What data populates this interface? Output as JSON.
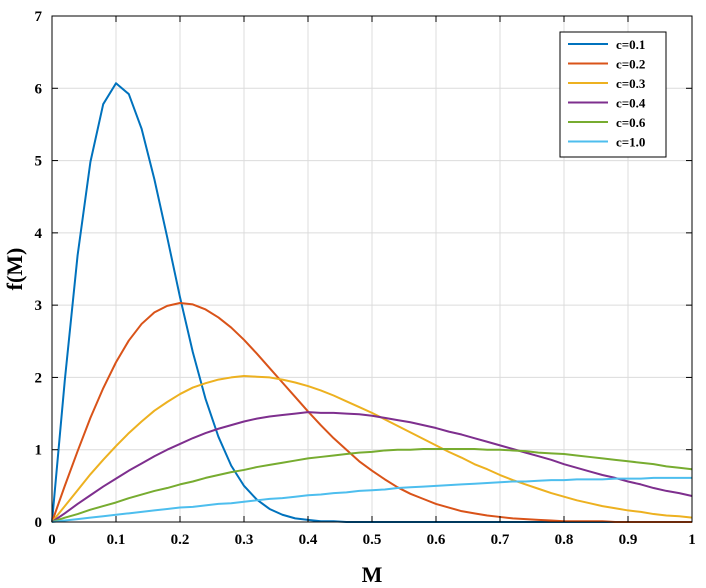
{
  "chart_data": {
    "type": "line",
    "xlabel": "M",
    "ylabel": "f(M)",
    "xlim": [
      0,
      1
    ],
    "ylim": [
      0,
      7
    ],
    "x_ticks": [
      "0",
      "0.1",
      "0.2",
      "0.3",
      "0.4",
      "0.5",
      "0.6",
      "0.7",
      "0.8",
      "0.9",
      "1"
    ],
    "y_ticks": [
      "0",
      "1",
      "2",
      "3",
      "4",
      "5",
      "6",
      "7"
    ],
    "grid": true,
    "legend_position": "top-right",
    "x": [
      0,
      0.02,
      0.04,
      0.06,
      0.08,
      0.1,
      0.12,
      0.14,
      0.16,
      0.18,
      0.2,
      0.22,
      0.24,
      0.26,
      0.28,
      0.3,
      0.32,
      0.34,
      0.36,
      0.38,
      0.4,
      0.42,
      0.44,
      0.46,
      0.48,
      0.5,
      0.52,
      0.54,
      0.56,
      0.58,
      0.6,
      0.62,
      0.64,
      0.66,
      0.68,
      0.7,
      0.72,
      0.74,
      0.76,
      0.78,
      0.8,
      0.82,
      0.84,
      0.86,
      0.88,
      0.9,
      0.92,
      0.94,
      0.96,
      0.98,
      1.0
    ],
    "series": [
      {
        "name": "c=0.1",
        "color": "#0072BD",
        "values": [
          0,
          1.96,
          3.69,
          4.98,
          5.78,
          6.07,
          5.92,
          5.44,
          4.74,
          3.94,
          3.11,
          2.35,
          1.7,
          1.18,
          0.78,
          0.5,
          0.31,
          0.18,
          0.1,
          0.05,
          0.03,
          0.01,
          0.01,
          0.0,
          0.0,
          0.0,
          0.0,
          0.0,
          0.0,
          0.0,
          0.0,
          0.0,
          0.0,
          0.0,
          0.0,
          0.0,
          0.0,
          0.0,
          0.0,
          0.0,
          0.0,
          0.0,
          0.0,
          0.0,
          0.0,
          0.0,
          0.0,
          0.0,
          0.0,
          0.0,
          0.0
        ]
      },
      {
        "name": "c=0.2",
        "color": "#D95319",
        "values": [
          0,
          0.5,
          0.98,
          1.44,
          1.85,
          2.21,
          2.51,
          2.74,
          2.9,
          2.99,
          3.03,
          3.01,
          2.94,
          2.83,
          2.69,
          2.52,
          2.33,
          2.13,
          1.93,
          1.73,
          1.53,
          1.34,
          1.16,
          1.0,
          0.84,
          0.71,
          0.59,
          0.48,
          0.39,
          0.32,
          0.25,
          0.2,
          0.15,
          0.12,
          0.09,
          0.07,
          0.05,
          0.04,
          0.03,
          0.02,
          0.01,
          0.01,
          0.01,
          0.01,
          0.0,
          0.0,
          0.0,
          0.0,
          0.0,
          0.0,
          0.0
        ]
      },
      {
        "name": "c=0.3",
        "color": "#EDB120",
        "values": [
          0,
          0.22,
          0.44,
          0.66,
          0.86,
          1.05,
          1.23,
          1.39,
          1.54,
          1.66,
          1.77,
          1.86,
          1.92,
          1.97,
          2.0,
          2.02,
          2.01,
          2.0,
          1.97,
          1.93,
          1.88,
          1.82,
          1.75,
          1.67,
          1.59,
          1.51,
          1.42,
          1.33,
          1.24,
          1.15,
          1.06,
          0.97,
          0.89,
          0.8,
          0.73,
          0.65,
          0.58,
          0.52,
          0.46,
          0.4,
          0.35,
          0.3,
          0.26,
          0.22,
          0.19,
          0.16,
          0.14,
          0.11,
          0.09,
          0.08,
          0.06
        ]
      },
      {
        "name": "c=0.4",
        "color": "#7E2F8E",
        "values": [
          0,
          0.12,
          0.25,
          0.37,
          0.49,
          0.6,
          0.71,
          0.81,
          0.91,
          1.0,
          1.08,
          1.16,
          1.23,
          1.29,
          1.34,
          1.39,
          1.43,
          1.46,
          1.48,
          1.5,
          1.52,
          1.51,
          1.51,
          1.5,
          1.49,
          1.47,
          1.44,
          1.41,
          1.38,
          1.34,
          1.3,
          1.25,
          1.21,
          1.16,
          1.11,
          1.06,
          1.01,
          0.96,
          0.91,
          0.86,
          0.8,
          0.75,
          0.7,
          0.65,
          0.61,
          0.56,
          0.52,
          0.47,
          0.43,
          0.4,
          0.36
        ]
      },
      {
        "name": "c=0.6",
        "color": "#77AC30",
        "values": [
          0,
          0.06,
          0.11,
          0.17,
          0.22,
          0.27,
          0.33,
          0.38,
          0.43,
          0.47,
          0.52,
          0.56,
          0.61,
          0.65,
          0.69,
          0.72,
          0.76,
          0.79,
          0.82,
          0.85,
          0.88,
          0.9,
          0.92,
          0.94,
          0.96,
          0.97,
          0.99,
          1.0,
          1.0,
          1.01,
          1.01,
          1.01,
          1.01,
          1.01,
          1.0,
          1.0,
          0.99,
          0.98,
          0.96,
          0.95,
          0.94,
          0.92,
          0.9,
          0.88,
          0.86,
          0.84,
          0.82,
          0.8,
          0.77,
          0.75,
          0.73
        ]
      },
      {
        "name": "c=1.0",
        "color": "#4DBEEE",
        "values": [
          0,
          0.02,
          0.04,
          0.06,
          0.08,
          0.1,
          0.12,
          0.14,
          0.16,
          0.18,
          0.2,
          0.21,
          0.23,
          0.25,
          0.26,
          0.28,
          0.3,
          0.32,
          0.33,
          0.35,
          0.37,
          0.38,
          0.4,
          0.41,
          0.43,
          0.44,
          0.45,
          0.47,
          0.48,
          0.49,
          0.5,
          0.51,
          0.52,
          0.53,
          0.54,
          0.55,
          0.56,
          0.56,
          0.57,
          0.58,
          0.58,
          0.59,
          0.59,
          0.59,
          0.6,
          0.6,
          0.6,
          0.61,
          0.61,
          0.61,
          0.61
        ]
      }
    ]
  }
}
